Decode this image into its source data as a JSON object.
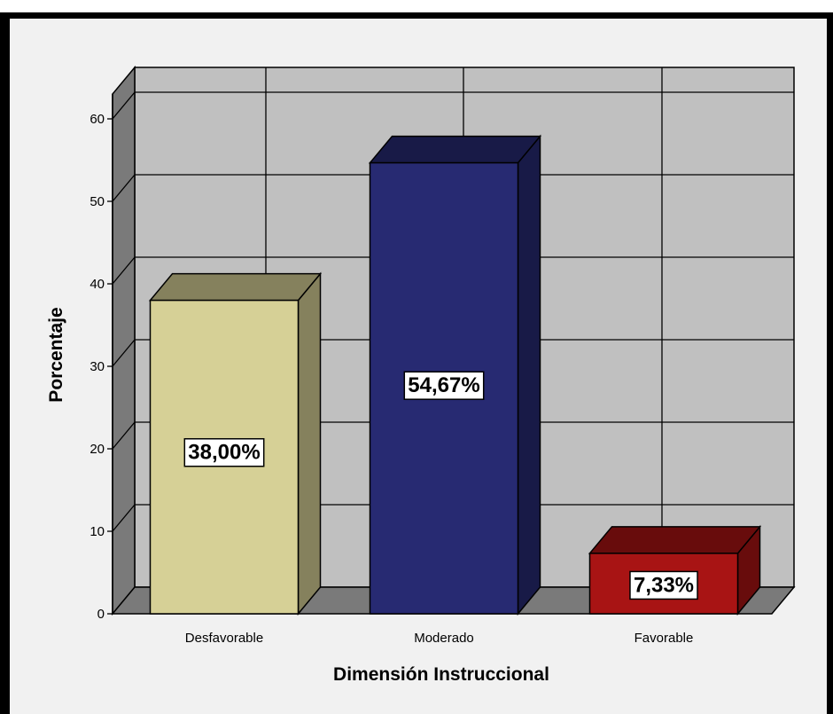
{
  "chart_data": {
    "type": "bar",
    "categories": [
      "Desfavorable",
      "Moderado",
      "Favorable"
    ],
    "values": [
      38.0,
      54.67,
      7.33
    ],
    "data_labels": [
      "38,00%",
      "54,67%",
      "7,33%"
    ],
    "colors": [
      "#d6d096",
      "#272a72",
      "#a81414"
    ],
    "title": "",
    "xlabel": "Dimensión Instruccional",
    "ylabel": "Porcentaje",
    "ylim": [
      0,
      60
    ],
    "yticks": [
      "0",
      "10",
      "20",
      "30",
      "40",
      "50",
      "60"
    ],
    "grid": true,
    "three_d": true,
    "legend": "none"
  }
}
